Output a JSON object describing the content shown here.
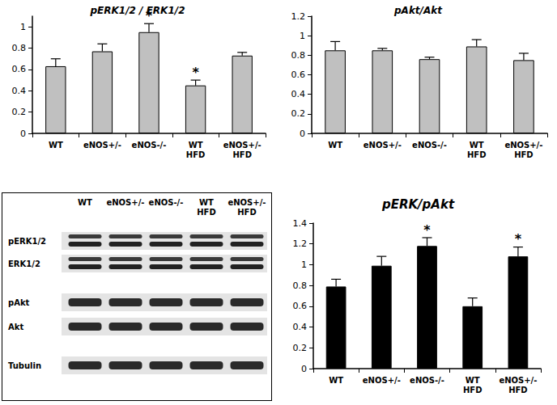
{
  "chart_data": [
    {
      "type": "bar",
      "title": "pERK1/2 / ERK1/2",
      "categories": [
        "WT",
        "eNOS+/-",
        "eNOS-/-",
        "WT HFD",
        "eNOS+/- HFD"
      ],
      "values": [
        0.63,
        0.77,
        0.95,
        0.45,
        0.73
      ],
      "errors": [
        0.07,
        0.07,
        0.08,
        0.05,
        0.03
      ],
      "color": "#c0c0c0",
      "ylim": [
        0,
        1.1
      ],
      "yticks": [
        0,
        0.2,
        0.4,
        0.6,
        0.8,
        1
      ],
      "grid": false,
      "annotations": [
        {
          "category": "eNOS-/-",
          "text": "*"
        },
        {
          "category": "WT HFD",
          "text": "*"
        }
      ]
    },
    {
      "type": "bar",
      "title": "pAkt/Akt",
      "categories": [
        "WT",
        "eNOS+/-",
        "eNOS-/-",
        "WT HFD",
        "eNOS+/- HFD"
      ],
      "values": [
        0.85,
        0.85,
        0.76,
        0.89,
        0.75
      ],
      "errors": [
        0.09,
        0.02,
        0.02,
        0.07,
        0.07
      ],
      "color": "#c0c0c0",
      "ylim": [
        0,
        1.2
      ],
      "yticks": [
        0,
        0.2,
        0.4,
        0.6,
        0.8,
        1,
        1.2
      ],
      "grid": false,
      "annotations": []
    },
    {
      "type": "bar",
      "title": "pERK/pAkt",
      "categories": [
        "WT",
        "eNOS+/-",
        "eNOS-/-",
        "WT HFD",
        "eNOS+/- HFD"
      ],
      "values": [
        0.79,
        0.99,
        1.18,
        0.6,
        1.08
      ],
      "errors": [
        0.07,
        0.09,
        0.08,
        0.08,
        0.09
      ],
      "color": "#000000",
      "ylim": [
        0,
        1.4
      ],
      "yticks": [
        0,
        0.2,
        0.4,
        0.6,
        0.8,
        1,
        1.2,
        1.4
      ],
      "grid": false,
      "annotations": [
        {
          "category": "eNOS-/-",
          "text": "*"
        },
        {
          "category": "eNOS+/- HFD",
          "text": "*"
        }
      ]
    }
  ],
  "blot": {
    "lanes": [
      "WT",
      "eNOS+/-",
      "eNOS-/-",
      "WT HFD",
      "eNOS+/- HFD"
    ],
    "rows": [
      "pERK1/2",
      "ERK1/2",
      "pAkt",
      "Akt",
      "Tubulin"
    ]
  }
}
